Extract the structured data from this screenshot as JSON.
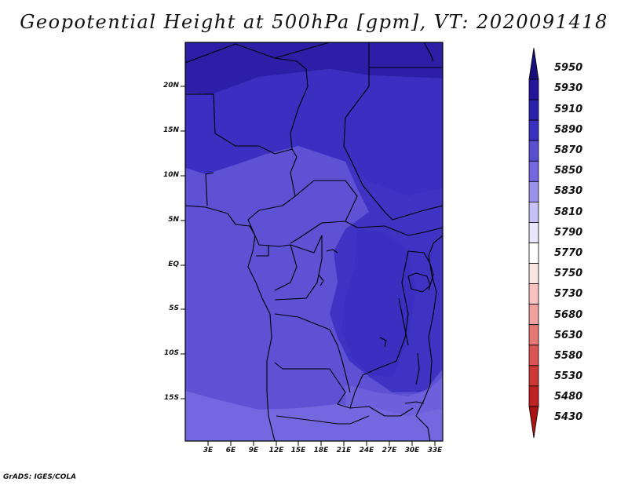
{
  "title": "Geopotential Height at 500hPa [gpm], VT: 2020091418",
  "credit": "GrADS: IGES/COLA",
  "lat_labels": [
    "20N",
    "15N",
    "10N",
    "5N",
    "EQ",
    "5S",
    "10S",
    "15S"
  ],
  "lon_labels": [
    "3E",
    "6E",
    "9E",
    "12E",
    "15E",
    "18E",
    "21E",
    "24E",
    "27E",
    "30E",
    "33E"
  ],
  "colorbar": {
    "levels": [
      "5950",
      "5930",
      "5910",
      "5890",
      "5870",
      "5850",
      "5830",
      "5810",
      "5790",
      "5770",
      "5750",
      "5730",
      "5680",
      "5630",
      "5580",
      "5530",
      "5480",
      "5430"
    ],
    "colors": [
      "#1a0f7a",
      "#23169a",
      "#2b21ad",
      "#3a2fc0",
      "#5a50d2",
      "#7468e0",
      "#9b92ec",
      "#c7c1f6",
      "#e8e5fc",
      "#ffffff",
      "#fde4e4",
      "#f8c2c2",
      "#f1a0a0",
      "#e67878",
      "#db5454",
      "#cf3636",
      "#bf2222",
      "#a81414"
    ]
  },
  "map": {
    "lon_range": [
      0,
      34
    ],
    "lat_range": [
      -20,
      25
    ],
    "field_colors": {
      "darkest": "#2a1fa6",
      "dark": "#3a2fc0",
      "mid": "#4639c6",
      "light": "#5d52d4",
      "lightest": "#7468e0"
    }
  }
}
